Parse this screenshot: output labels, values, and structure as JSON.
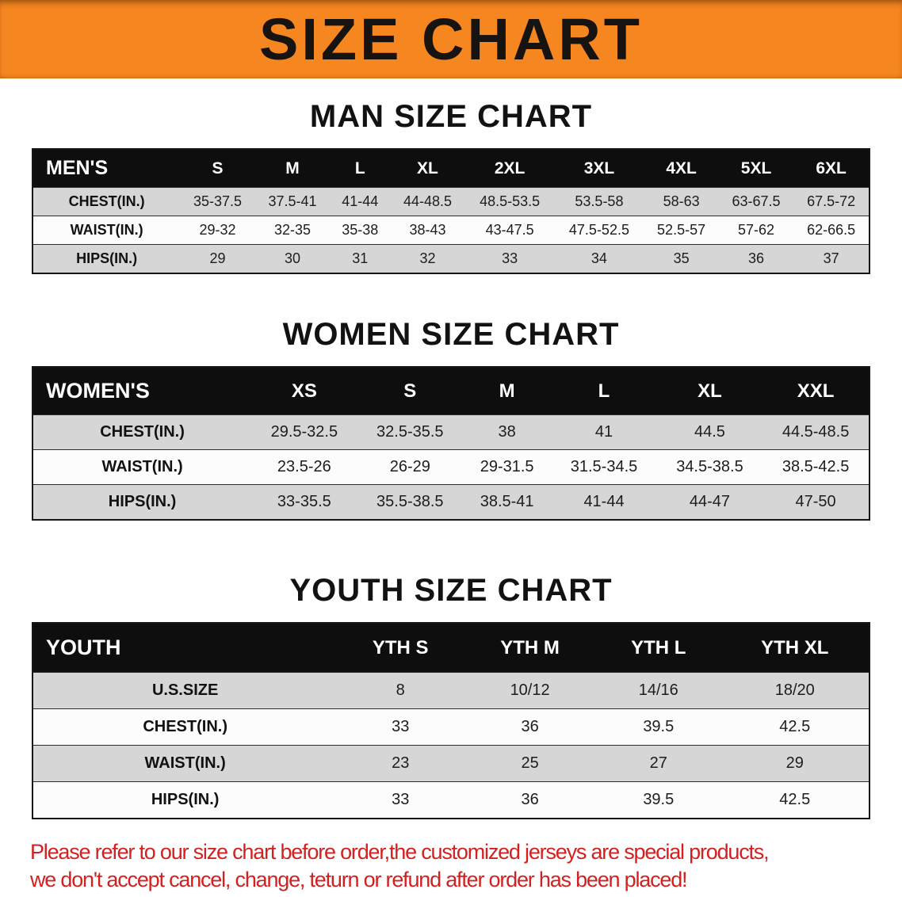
{
  "banner": {
    "title": "SIZE CHART"
  },
  "sections": [
    {
      "id": "men",
      "heading": "MAN SIZE CHART",
      "table": {
        "header": [
          "MEN'S",
          "S",
          "M",
          "L",
          "XL",
          "2XL",
          "3XL",
          "4XL",
          "5XL",
          "6XL"
        ],
        "rows": [
          [
            "CHEST(IN.)",
            "35-37.5",
            "37.5-41",
            "41-44",
            "44-48.5",
            "48.5-53.5",
            "53.5-58",
            "58-63",
            "63-67.5",
            "67.5-72"
          ],
          [
            "WAIST(IN.)",
            "29-32",
            "32-35",
            "35-38",
            "38-43",
            "43-47.5",
            "47.5-52.5",
            "52.5-57",
            "57-62",
            "62-66.5"
          ],
          [
            "HIPS(IN.)",
            "29",
            "30",
            "31",
            "32",
            "33",
            "34",
            "35",
            "36",
            "37"
          ]
        ]
      }
    },
    {
      "id": "women",
      "heading": "WOMEN SIZE CHART",
      "table": {
        "header": [
          "WOMEN'S",
          "XS",
          "S",
          "M",
          "L",
          "XL",
          "XXL"
        ],
        "rows": [
          [
            "CHEST(IN.)",
            "29.5-32.5",
            "32.5-35.5",
            "38",
            "41",
            "44.5",
            "44.5-48.5"
          ],
          [
            "WAIST(IN.)",
            "23.5-26",
            "26-29",
            "29-31.5",
            "31.5-34.5",
            "34.5-38.5",
            "38.5-42.5"
          ],
          [
            "HIPS(IN.)",
            "33-35.5",
            "35.5-38.5",
            "38.5-41",
            "41-44",
            "44-47",
            "47-50"
          ]
        ]
      }
    },
    {
      "id": "youth",
      "heading": "YOUTH SIZE CHART",
      "table": {
        "header": [
          "YOUTH",
          "YTH S",
          "YTH M",
          "YTH L",
          "YTH XL"
        ],
        "rows": [
          [
            "U.S.SIZE",
            "8",
            "10/12",
            "14/16",
            "18/20"
          ],
          [
            "CHEST(IN.)",
            "33",
            "36",
            "39.5",
            "42.5"
          ],
          [
            "WAIST(IN.)",
            "23",
            "25",
            "27",
            "29"
          ],
          [
            "HIPS(IN.)",
            "33",
            "36",
            "39.5",
            "42.5"
          ]
        ]
      }
    }
  ],
  "disclaimer": {
    "line1": "Please refer to our size chart before order,the customized jerseys are special products,",
    "line2": "we don't accept cancel, change, teturn or refund after order has been placed!"
  },
  "colors": {
    "banner_orange": "#f6861f",
    "table_header_black": "#0e0e0e",
    "row_gray": "#d6d6d6",
    "row_white": "#fcfcfc",
    "disclaimer_red": "#d32020"
  }
}
